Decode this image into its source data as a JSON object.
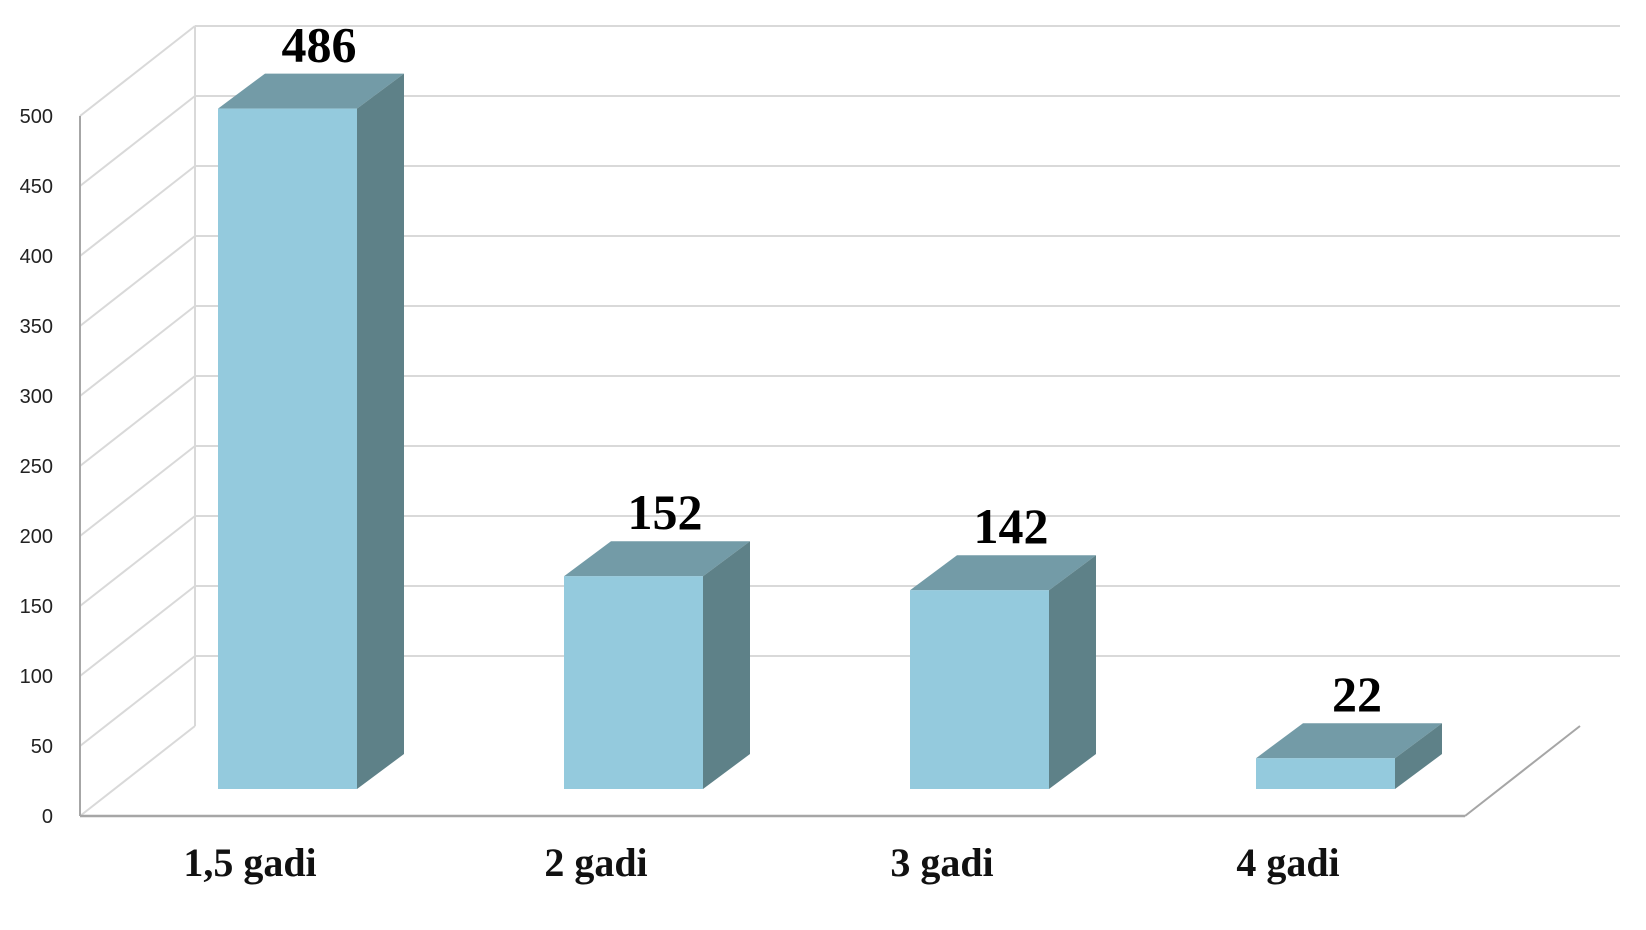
{
  "chart_data": {
    "type": "bar",
    "style": "3d-column",
    "categories": [
      "1,5 gadi",
      "2 gadi",
      "3 gadi",
      "4 gadi"
    ],
    "values": [
      486,
      152,
      142,
      22
    ],
    "data_labels": [
      "486",
      "152",
      "142",
      "22"
    ],
    "ylim": [
      0,
      500
    ],
    "yticks": [
      0,
      50,
      100,
      150,
      200,
      250,
      300,
      350,
      400,
      450,
      500
    ],
    "ytick_labels": [
      "0",
      "50",
      "100",
      "150",
      "200",
      "250",
      "300",
      "350",
      "400",
      "450",
      "500"
    ],
    "grid": true,
    "legend": "none",
    "colors": {
      "bar_front": "#94cadd",
      "bar_top": "#739ba7",
      "bar_side": "#5e8188",
      "grid": "#d9d9d9",
      "axis": "#a6a6a6"
    }
  }
}
